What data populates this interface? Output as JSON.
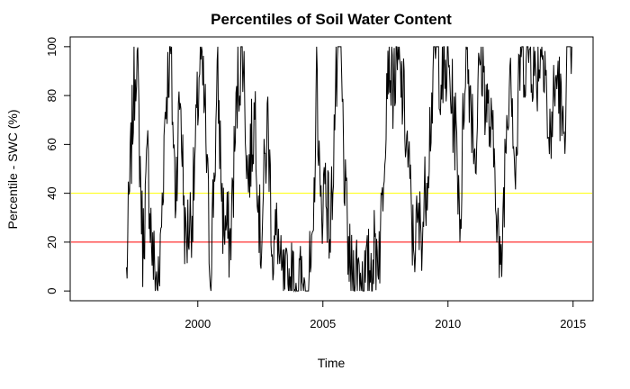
{
  "chart_data": {
    "type": "line",
    "title": "Percentiles of Soil Water Content",
    "xlabel": "Time",
    "ylabel": "Percentile - SWC (%)",
    "xlim": [
      1994.9,
      2015.8
    ],
    "ylim": [
      -4,
      104
    ],
    "x_ticks": [
      2000,
      2005,
      2010,
      2015
    ],
    "x_tick_labels": [
      "2000",
      "2005",
      "2010",
      "2015"
    ],
    "y_ticks": [
      0,
      20,
      40,
      60,
      80,
      100
    ],
    "y_tick_labels": [
      "0",
      "20",
      "40",
      "60",
      "80",
      "100"
    ],
    "grid": false,
    "reference_lines": [
      {
        "y": 40,
        "color": "#ffff00"
      },
      {
        "y": 20,
        "color": "#ff0000"
      }
    ],
    "series_color": "#000000",
    "segments": [
      {
        "x": [
          1997.15,
          1997.2,
          1997.25,
          1997.3,
          1997.35,
          1997.4,
          1997.45,
          1997.5,
          1997.55,
          1997.6,
          1997.65,
          1997.7,
          1997.75,
          1997.8,
          1997.85,
          1997.9,
          1997.95,
          2000.0
        ],
        "y": [
          6,
          20,
          40,
          60,
          82,
          70,
          100,
          55,
          30,
          18,
          40,
          53,
          30,
          48,
          15,
          20,
          28,
          20
        ]
      }
    ],
    "anchors": [
      [
        1997.15,
        6
      ],
      [
        1997.35,
        60
      ],
      [
        1997.45,
        82
      ],
      [
        1997.55,
        100
      ],
      [
        1997.8,
        18
      ],
      [
        1998.0,
        53
      ],
      [
        1998.2,
        13
      ],
      [
        1998.45,
        0
      ],
      [
        1998.7,
        75
      ],
      [
        1998.9,
        100
      ],
      [
        1999.1,
        40
      ],
      [
        1999.3,
        82
      ],
      [
        1999.5,
        20
      ],
      [
        1999.8,
        35
      ],
      [
        2000.1,
        98
      ],
      [
        2000.3,
        70
      ],
      [
        2000.5,
        8
      ],
      [
        2000.8,
        85
      ],
      [
        2001.0,
        30
      ],
      [
        2001.3,
        20
      ],
      [
        2001.6,
        85
      ],
      [
        2001.8,
        100
      ],
      [
        2002.0,
        45
      ],
      [
        2002.3,
        75
      ],
      [
        2002.5,
        18
      ],
      [
        2002.8,
        70
      ],
      [
        2003.0,
        15
      ],
      [
        2003.2,
        25
      ],
      [
        2003.3,
        5
      ],
      [
        2003.5,
        0
      ],
      [
        2003.8,
        3
      ],
      [
        2004.2,
        2
      ],
      [
        2004.6,
        8
      ],
      [
        2004.75,
        96
      ],
      [
        2004.9,
        30
      ],
      [
        2005.1,
        48
      ],
      [
        2005.3,
        22
      ],
      [
        2005.5,
        80
      ],
      [
        2005.7,
        100
      ],
      [
        2005.9,
        35
      ],
      [
        2006.1,
        5
      ],
      [
        2006.4,
        10
      ],
      [
        2006.7,
        3
      ],
      [
        2007.0,
        15
      ],
      [
        2007.3,
        20
      ],
      [
        2007.6,
        100
      ],
      [
        2007.8,
        85
      ],
      [
        2008.0,
        92
      ],
      [
        2008.2,
        80
      ],
      [
        2008.4,
        55
      ],
      [
        2008.6,
        20
      ],
      [
        2008.8,
        25
      ],
      [
        2009.0,
        28
      ],
      [
        2009.2,
        55
      ],
      [
        2009.5,
        100
      ],
      [
        2009.8,
        85
      ],
      [
        2010.0,
        92
      ],
      [
        2010.3,
        65
      ],
      [
        2010.5,
        30
      ],
      [
        2010.7,
        100
      ],
      [
        2010.9,
        82
      ],
      [
        2011.1,
        55
      ],
      [
        2011.3,
        100
      ],
      [
        2011.5,
        80
      ],
      [
        2011.7,
        65
      ],
      [
        2011.9,
        50
      ],
      [
        2012.1,
        0
      ],
      [
        2012.3,
        60
      ],
      [
        2012.5,
        100
      ],
      [
        2012.7,
        45
      ],
      [
        2012.9,
        100
      ],
      [
        2013.1,
        95
      ],
      [
        2013.3,
        100
      ],
      [
        2013.5,
        85
      ],
      [
        2013.7,
        100
      ],
      [
        2013.9,
        100
      ],
      [
        2014.0,
        55
      ],
      [
        2014.2,
        75
      ],
      [
        2014.4,
        90
      ],
      [
        2014.6,
        60
      ],
      [
        2014.8,
        100
      ],
      [
        2014.95,
        100
      ]
    ]
  }
}
